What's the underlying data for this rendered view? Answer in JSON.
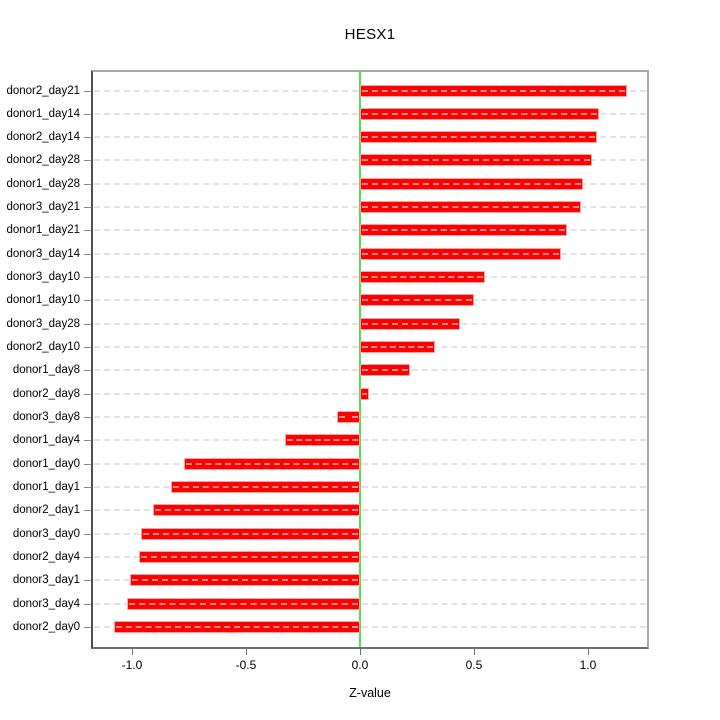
{
  "title": "HESX1",
  "chart_data": {
    "type": "bar",
    "orientation": "horizontal",
    "title": "HESX1",
    "xlabel": "Z-value",
    "ylabel": "",
    "categories": [
      "donor2_day21",
      "donor1_day14",
      "donor2_day14",
      "donor2_day28",
      "donor1_day28",
      "donor3_day21",
      "donor1_day21",
      "donor3_day14",
      "donor3_day10",
      "donor1_day10",
      "donor3_day28",
      "donor2_day10",
      "donor1_day8",
      "donor2_day8",
      "donor3_day8",
      "donor1_day4",
      "donor1_day0",
      "donor1_day1",
      "donor2_day1",
      "donor3_day0",
      "donor2_day4",
      "donor3_day1",
      "donor3_day4",
      "donor2_day0"
    ],
    "values": [
      1.17,
      1.05,
      1.04,
      1.02,
      0.98,
      0.97,
      0.91,
      0.88,
      0.55,
      0.5,
      0.44,
      0.33,
      0.22,
      0.04,
      -0.1,
      -0.33,
      -0.77,
      -0.83,
      -0.91,
      -0.96,
      -0.97,
      -1.01,
      -1.02,
      -1.08
    ],
    "x_ticks": [
      -1.0,
      -0.5,
      0.0,
      0.5,
      1.0
    ],
    "x_tick_labels": [
      "-1.0",
      "-0.5",
      "0.0",
      "0.5",
      "1.0"
    ],
    "xlim": [
      -1.171,
      1.259
    ],
    "grid": "horizontal-dashed-per-category",
    "zero_reference_line": 0.0,
    "legend": "none",
    "colors": {
      "bar_fill": "#ff0000",
      "bar_border": "#ffa3a3",
      "zero_line": "#4ce44c",
      "gridline": "#e2e2e2",
      "box": "#a8a8a8",
      "axis": "#6f6f6f",
      "text": "#000000",
      "background": "#ffffff"
    }
  }
}
